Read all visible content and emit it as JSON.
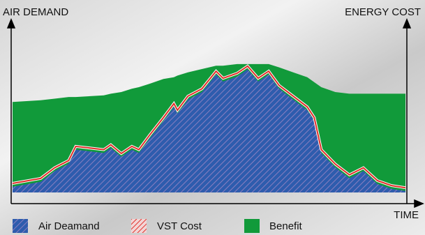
{
  "chart_data": {
    "type": "area",
    "y_label": "AIR DEMAND",
    "y2_label": "ENERGY COST",
    "x_label": "TIME",
    "x": [
      0,
      40,
      60,
      80,
      90,
      130,
      140,
      155,
      170,
      180,
      195,
      215,
      230,
      235,
      250,
      270,
      290,
      300,
      320,
      335,
      350,
      365,
      380,
      400,
      420,
      430,
      440,
      460,
      480,
      500,
      520,
      540,
      560
    ],
    "xlim": [
      0,
      560
    ],
    "ylim": [
      0,
      100
    ],
    "series": [
      {
        "name": "Air Deamand",
        "color": "#2e5cad",
        "values": [
          3.5,
          6.5,
          13,
          17.4,
          26,
          24,
          27,
          21.7,
          26,
          24,
          32.6,
          43.5,
          52,
          48,
          56.5,
          61,
          71.7,
          67.4,
          70.4,
          74.8,
          67.4,
          71.7,
          63,
          56.5,
          50,
          43.5,
          24,
          15.2,
          8.7,
          13,
          5.2,
          2.2,
          0.9
        ]
      },
      {
        "name": "VST Cost",
        "color": "#e0302a",
        "values": [
          5.5,
          8.5,
          15,
          19.4,
          28,
          26,
          29,
          23.7,
          28,
          26,
          34.6,
          45.5,
          54,
          50,
          58.5,
          63,
          73.7,
          69.4,
          72.4,
          76.8,
          69.4,
          73.7,
          65,
          58.5,
          52,
          45.5,
          26,
          17.2,
          10.7,
          15,
          7.2,
          4.2,
          2.9
        ]
      },
      {
        "name": "Benefit",
        "color": "#119a3a",
        "values": [
          55,
          56,
          57,
          58,
          58,
          59,
          60,
          61,
          63,
          64,
          66,
          69,
          70,
          71,
          73,
          75,
          77,
          77,
          78,
          78,
          78,
          78,
          76,
          73,
          70,
          67,
          64,
          61,
          60,
          60,
          60,
          60,
          60
        ]
      }
    ]
  }
}
